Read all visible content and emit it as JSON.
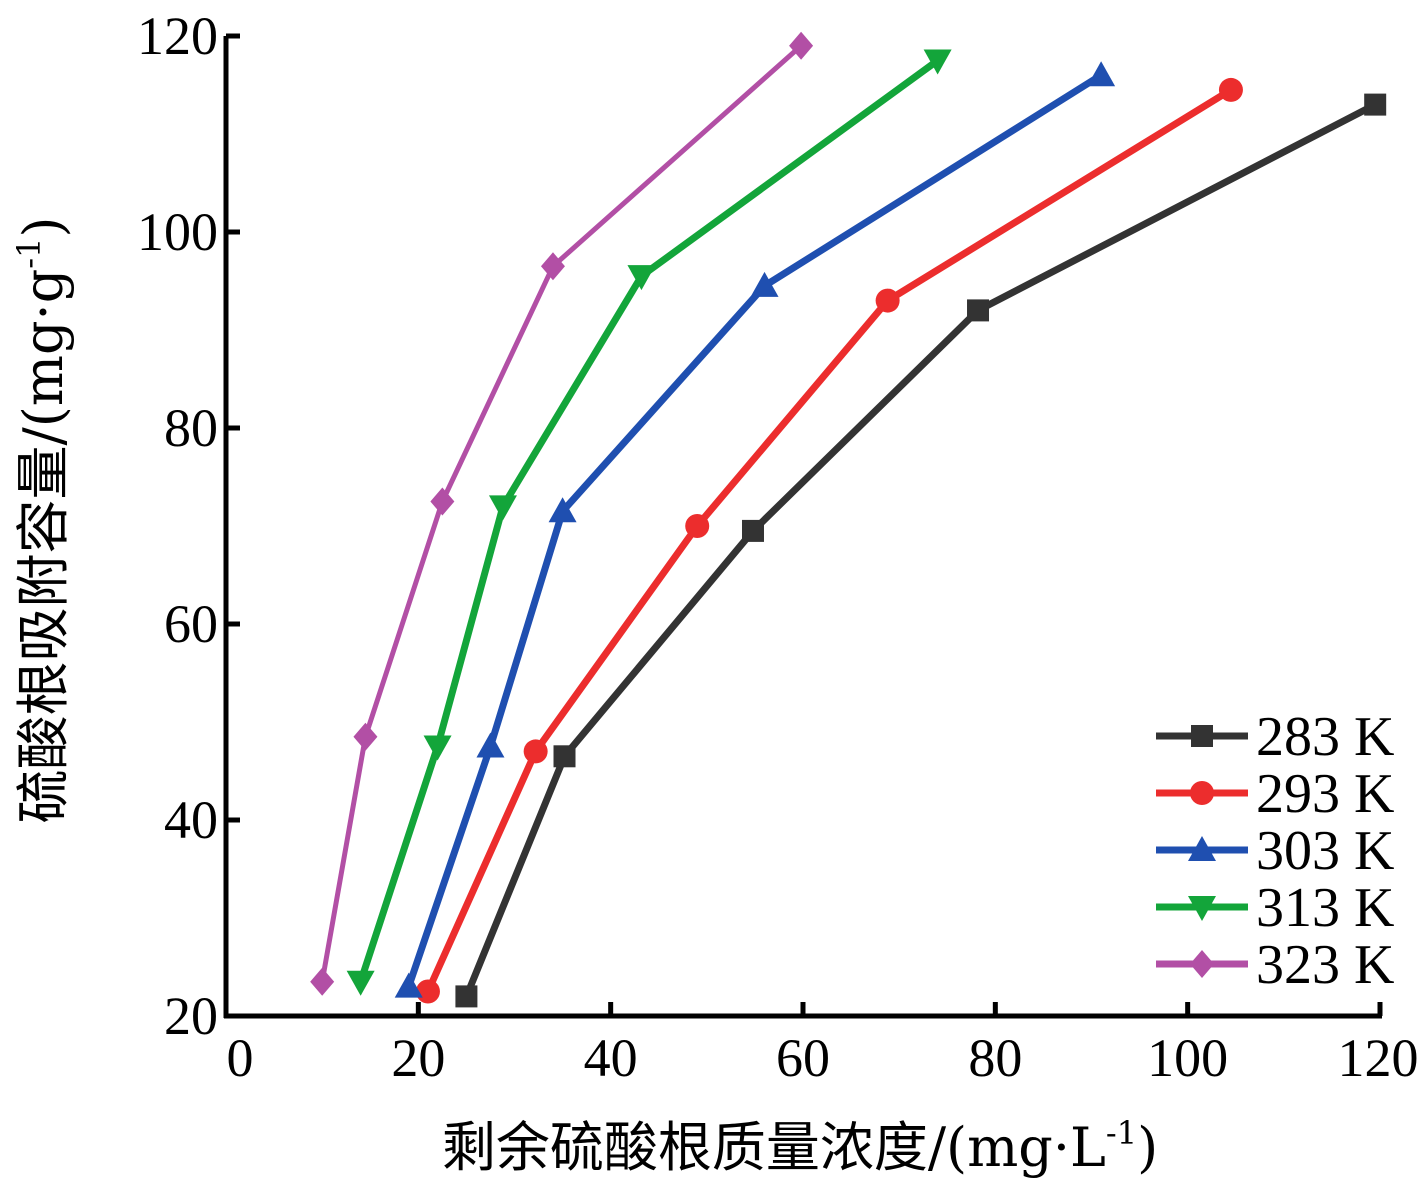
{
  "chart_data": {
    "type": "line",
    "xlabel": "剩余硫酸根质量浓度/(mg·L",
    "xlabel_sup": "-1",
    "xlabel_close": ")",
    "ylabel": "硫酸根吸附容量/(mg·g",
    "ylabel_sup": "-1",
    "ylabel_close": ")",
    "xlim": [
      0,
      120
    ],
    "ylim": [
      20,
      120
    ],
    "xticks": [
      0,
      20,
      40,
      60,
      80,
      100,
      120
    ],
    "yticks": [
      20,
      40,
      60,
      80,
      100,
      120
    ],
    "legend_position": "bottom-right",
    "grid": false,
    "series": [
      {
        "name": "283 K",
        "color": "#333333",
        "marker": "square",
        "x": [
          25,
          35.2,
          54.8,
          78.2,
          119.5
        ],
        "y": [
          22,
          46.5,
          69.5,
          92,
          113
        ]
      },
      {
        "name": "293 K",
        "color": "#ec2d2d",
        "marker": "circle",
        "x": [
          21,
          32.2,
          49,
          68.8,
          104.5
        ],
        "y": [
          22.5,
          47,
          70,
          93,
          114.5
        ]
      },
      {
        "name": "303 K",
        "color": "#1f4fb0",
        "marker": "triangle-up",
        "x": [
          19,
          27.5,
          35,
          56,
          91
        ],
        "y": [
          23,
          47.5,
          71.5,
          94.5,
          116
        ]
      },
      {
        "name": "313 K",
        "color": "#13a53a",
        "marker": "triangle-down",
        "x": [
          14,
          22,
          28.8,
          43.2,
          74
        ],
        "y": [
          23.5,
          47.5,
          72,
          95.5,
          117.5
        ]
      },
      {
        "name": "323 K",
        "color": "#b24fa5",
        "marker": "diamond",
        "x": [
          10,
          14.5,
          22.5,
          34,
          59.8
        ],
        "y": [
          23.5,
          48.5,
          72.5,
          96.5,
          119
        ]
      }
    ]
  }
}
